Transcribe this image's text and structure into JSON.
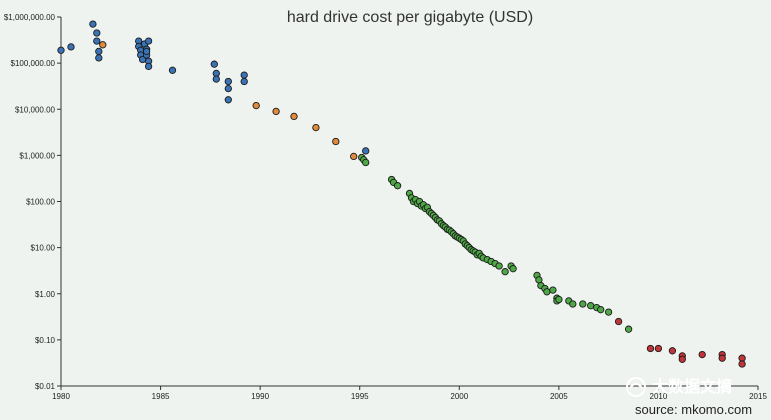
{
  "chart_data": {
    "type": "scatter",
    "title": "hard drive cost per gigabyte (USD)",
    "xlabel": "",
    "ylabel": "",
    "y_scale": "log",
    "xlim": [
      1980,
      2015
    ],
    "ylim": [
      0.01,
      1000000
    ],
    "x_ticks": [
      "1980",
      "1985",
      "1990",
      "1995",
      "2000",
      "2005",
      "2010",
      "2015"
    ],
    "y_ticks": [
      "$0.01",
      "$0.10",
      "$1.00",
      "$10.00",
      "$100.00",
      "$1,000.00",
      "$10,000.00",
      "$100,000.00",
      "$1,000,000.00"
    ],
    "grid": false,
    "source": "source: mkomo.com",
    "watermark": "大数据文摘",
    "series": [
      {
        "color": "#3a73b5",
        "points": [
          [
            1980.0,
            190000
          ],
          [
            1980.5,
            225000
          ],
          [
            1981.6,
            700000
          ],
          [
            1981.8,
            450000
          ],
          [
            1981.8,
            300000
          ],
          [
            1981.9,
            180000
          ],
          [
            1981.9,
            130000
          ],
          [
            1983.9,
            300000
          ],
          [
            1983.9,
            230000
          ],
          [
            1984.0,
            190000
          ],
          [
            1984.0,
            150000
          ],
          [
            1984.1,
            120000
          ],
          [
            1984.2,
            260000
          ],
          [
            1984.3,
            200000
          ],
          [
            1984.3,
            150000
          ],
          [
            1984.4,
            110000
          ],
          [
            1984.4,
            85000
          ],
          [
            1984.4,
            300000
          ],
          [
            1984.3,
            180000
          ],
          [
            1985.6,
            70000
          ],
          [
            1987.7,
            95000
          ],
          [
            1987.8,
            60000
          ],
          [
            1987.8,
            45000
          ],
          [
            1988.4,
            40000
          ],
          [
            1988.4,
            28000
          ],
          [
            1988.4,
            16000
          ],
          [
            1989.2,
            55000
          ],
          [
            1989.2,
            40000
          ],
          [
            1995.3,
            1250
          ]
        ]
      },
      {
        "color": "#e08a3c",
        "points": [
          [
            1982.1,
            250000
          ],
          [
            1989.8,
            12000
          ],
          [
            1990.8,
            9000
          ],
          [
            1991.7,
            7000
          ],
          [
            1992.8,
            4000
          ],
          [
            1993.8,
            2000
          ],
          [
            1994.7,
            950
          ]
        ]
      },
      {
        "color": "#4fa846",
        "points": [
          [
            1995.1,
            900
          ],
          [
            1995.2,
            800
          ],
          [
            1995.3,
            700
          ],
          [
            1996.6,
            300
          ],
          [
            1996.7,
            260
          ],
          [
            1996.9,
            220
          ],
          [
            1997.5,
            150
          ],
          [
            1997.6,
            120
          ],
          [
            1997.7,
            100
          ],
          [
            1997.8,
            110
          ],
          [
            1997.9,
            90
          ],
          [
            1998.0,
            100
          ],
          [
            1998.1,
            80
          ],
          [
            1998.2,
            85
          ],
          [
            1998.3,
            70
          ],
          [
            1998.4,
            75
          ],
          [
            1998.5,
            60
          ],
          [
            1998.6,
            55
          ],
          [
            1998.7,
            50
          ],
          [
            1998.8,
            45
          ],
          [
            1998.9,
            40
          ],
          [
            1999.0,
            38
          ],
          [
            1999.1,
            33
          ],
          [
            1999.2,
            30
          ],
          [
            1999.3,
            28
          ],
          [
            1999.4,
            25
          ],
          [
            1999.5,
            24
          ],
          [
            1999.6,
            22
          ],
          [
            1999.7,
            20
          ],
          [
            1999.8,
            18
          ],
          [
            1999.9,
            17
          ],
          [
            2000.0,
            16
          ],
          [
            2000.1,
            15
          ],
          [
            2000.2,
            14
          ],
          [
            2000.3,
            12
          ],
          [
            2000.4,
            11
          ],
          [
            2000.5,
            10
          ],
          [
            2000.6,
            9
          ],
          [
            2000.7,
            8.5
          ],
          [
            2000.8,
            8
          ],
          [
            2000.9,
            7
          ],
          [
            2001.0,
            7.5
          ],
          [
            2001.1,
            6.5
          ],
          [
            2001.2,
            6
          ],
          [
            2001.4,
            5.5
          ],
          [
            2001.6,
            5
          ],
          [
            2001.8,
            4.5
          ],
          [
            2002.0,
            4
          ],
          [
            2002.3,
            3
          ],
          [
            2002.6,
            4
          ],
          [
            2002.7,
            3.5
          ],
          [
            2003.9,
            2.5
          ],
          [
            2004.0,
            2
          ],
          [
            2004.1,
            1.5
          ],
          [
            2004.3,
            1.3
          ],
          [
            2004.4,
            1.1
          ],
          [
            2004.7,
            1.2
          ],
          [
            2004.9,
            0.8
          ],
          [
            2004.9,
            0.7
          ],
          [
            2005.0,
            0.75
          ],
          [
            2005.5,
            0.7
          ],
          [
            2005.7,
            0.6
          ],
          [
            2006.2,
            0.6
          ],
          [
            2006.6,
            0.55
          ],
          [
            2006.9,
            0.5
          ],
          [
            2007.1,
            0.45
          ],
          [
            2007.5,
            0.4
          ],
          [
            2008.5,
            0.17
          ]
        ]
      },
      {
        "color": "#c0343a",
        "points": [
          [
            2008.0,
            0.25
          ],
          [
            2009.6,
            0.065
          ],
          [
            2010.0,
            0.065
          ],
          [
            2010.7,
            0.058
          ],
          [
            2011.2,
            0.045
          ],
          [
            2011.2,
            0.038
          ],
          [
            2012.2,
            0.048
          ],
          [
            2013.2,
            0.048
          ],
          [
            2013.2,
            0.04
          ],
          [
            2014.2,
            0.04
          ],
          [
            2014.2,
            0.03
          ]
        ]
      }
    ]
  }
}
